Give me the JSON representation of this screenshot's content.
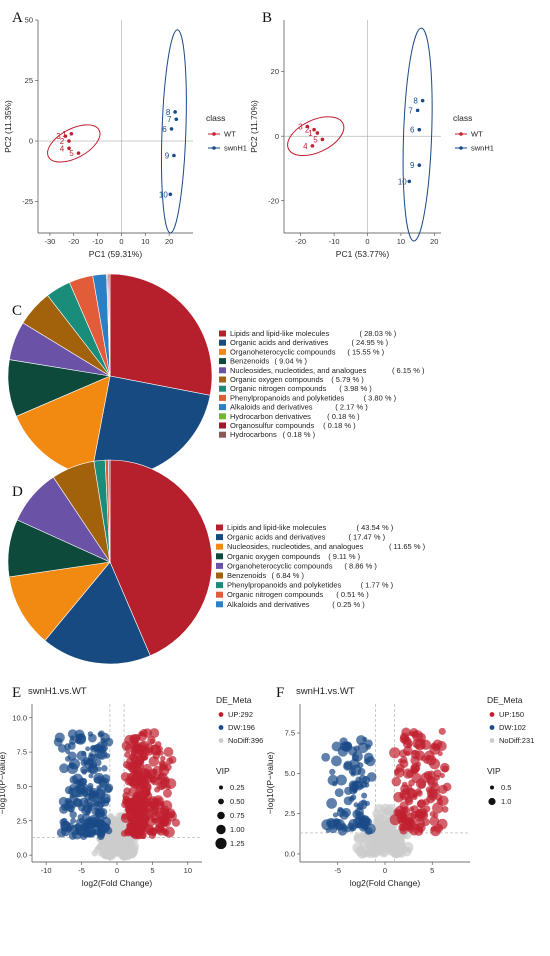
{
  "panels": {
    "a": "A",
    "b": "B",
    "c": "C",
    "d": "D",
    "e": "E",
    "f": "F"
  },
  "colors": {
    "wt": "#c0202f",
    "swnh1": "#1a4a87",
    "nodiff": "#cccccc"
  },
  "chart_data": [
    {
      "panel": "A",
      "type": "scatter",
      "xlabel": "PC1 (59.31%)",
      "ylabel": "PC2 (11.35%)",
      "xlim": [
        -35,
        30
      ],
      "ylim": [
        -38,
        50
      ],
      "xticks": [
        -30,
        -20,
        -10,
        0,
        10,
        20
      ],
      "yticks": [
        -25,
        0,
        25,
        50
      ],
      "xtick_labels": [
        "-30",
        "-20",
        "-10",
        "0",
        "10",
        "20"
      ],
      "ytick_labels": [
        "-25",
        "0",
        "25",
        "50"
      ],
      "legend_title": "class",
      "legend_position": "right",
      "series": [
        {
          "name": "WT",
          "color": "#c0202f",
          "points": [
            {
              "label": "1",
              "x": -21,
              "y": 3
            },
            {
              "label": "2",
              "x": -22,
              "y": 0
            },
            {
              "label": "3",
              "x": -23.5,
              "y": 2
            },
            {
              "label": "4",
              "x": -22,
              "y": -3
            },
            {
              "label": "5",
              "x": -18,
              "y": -5
            }
          ],
          "ellipse": {
            "cx": -20,
            "cy": -1,
            "rx": 12,
            "ry": 6,
            "rot": -28
          }
        },
        {
          "name": "swnH1",
          "color": "#1a4a87",
          "points": [
            {
              "label": "6",
              "x": 21,
              "y": 5
            },
            {
              "label": "7",
              "x": 23,
              "y": 9
            },
            {
              "label": "8",
              "x": 22.5,
              "y": 12
            },
            {
              "label": "9",
              "x": 22,
              "y": -6
            },
            {
              "label": "10",
              "x": 20.5,
              "y": -22
            }
          ],
          "ellipse": {
            "cx": 22,
            "cy": 4,
            "rx": 5,
            "ry": 42,
            "rot": 2
          }
        }
      ]
    },
    {
      "panel": "B",
      "type": "scatter",
      "xlabel": "PC1 (53.77%)",
      "ylabel": "PC2 (11.70%)",
      "xlim": [
        -25,
        22
      ],
      "ylim": [
        -30,
        36
      ],
      "xticks": [
        -20,
        -10,
        0,
        10,
        20
      ],
      "yticks": [
        -20,
        0,
        20
      ],
      "xtick_labels": [
        "-20",
        "-10",
        "0",
        "10",
        "20"
      ],
      "ytick_labels": [
        "-20",
        "0",
        "20"
      ],
      "legend_title": "class",
      "legend_position": "right",
      "series": [
        {
          "name": "WT",
          "color": "#c0202f",
          "points": [
            {
              "label": "1",
              "x": -15,
              "y": 1
            },
            {
              "label": "2",
              "x": -16,
              "y": 2
            },
            {
              "label": "3",
              "x": -18,
              "y": 3
            },
            {
              "label": "4",
              "x": -16.5,
              "y": -3
            },
            {
              "label": "5",
              "x": -13.5,
              "y": -1
            }
          ],
          "ellipse": {
            "cx": -15.5,
            "cy": 0,
            "rx": 9,
            "ry": 5,
            "rot": -25
          }
        },
        {
          "name": "swnH1",
          "color": "#1a4a87",
          "points": [
            {
              "label": "6",
              "x": 15.5,
              "y": 2
            },
            {
              "label": "7",
              "x": 15,
              "y": 8
            },
            {
              "label": "8",
              "x": 16.5,
              "y": 11
            },
            {
              "label": "9",
              "x": 15.5,
              "y": -9
            },
            {
              "label": "10",
              "x": 12.5,
              "y": -14
            }
          ],
          "ellipse": {
            "cx": 15,
            "cy": 0.5,
            "rx": 4.2,
            "ry": 33,
            "rot": 2
          }
        }
      ]
    },
    {
      "panel": "C",
      "type": "pie",
      "slices": [
        {
          "label": "Lipids and lipid-like molecules",
          "pct": "( 28.03 % )",
          "value": 28.03,
          "color": "#b5202c"
        },
        {
          "label": "Organic acids and derivatives",
          "pct": "( 24.95 % )",
          "value": 24.95,
          "color": "#184a82"
        },
        {
          "label": "Organoheterocyclic compounds",
          "pct": "( 15.55 % )",
          "value": 15.55,
          "color": "#f28a12"
        },
        {
          "label": "Benzenoids",
          "pct": "( 9.04 % )",
          "value": 9.04,
          "color": "#0d4a3c"
        },
        {
          "label": "Nucleosides, nucleotides, and analogues",
          "pct": "( 6.15 % )",
          "value": 6.15,
          "color": "#6a53a6"
        },
        {
          "label": "Organic oxygen compounds",
          "pct": "( 5.79 % )",
          "value": 5.79,
          "color": "#a2620c"
        },
        {
          "label": "Organic nitrogen compounds",
          "pct": "( 3.98 % )",
          "value": 3.98,
          "color": "#1a8d7a"
        },
        {
          "label": "Phenylpropanoids and polyketides",
          "pct": "( 3.80 % )",
          "value": 3.8,
          "color": "#e35c39"
        },
        {
          "label": "Alkaloids and derivatives",
          "pct": "( 2.17 % )",
          "value": 2.17,
          "color": "#2b7fc4"
        },
        {
          "label": "Hydrocarbon derivatives",
          "pct": "( 0.18 % )",
          "value": 0.18,
          "color": "#75b52f"
        },
        {
          "label": "Organosulfur compounds",
          "pct": "( 0.18 % )",
          "value": 0.18,
          "color": "#a5152b"
        },
        {
          "label": "Hydrocarbons",
          "pct": "( 0.18 % )",
          "value": 0.18,
          "color": "#8a5a58"
        }
      ]
    },
    {
      "panel": "D",
      "type": "pie",
      "slices": [
        {
          "label": "Lipids and lipid-like molecules",
          "pct": "( 43.54 % )",
          "value": 43.54,
          "color": "#b5202c"
        },
        {
          "label": "Organic acids and derivatives",
          "pct": "( 17.47 % )",
          "value": 17.47,
          "color": "#184a82"
        },
        {
          "label": "Nucleosides, nucleotides, and analogues",
          "pct": "( 11.65 % )",
          "value": 11.65,
          "color": "#f28a12"
        },
        {
          "label": "Organic oxygen compounds",
          "pct": "( 9.11 % )",
          "value": 9.11,
          "color": "#0d4a3c"
        },
        {
          "label": "Organoheterocyclic compounds",
          "pct": "( 8.86 % )",
          "value": 8.86,
          "color": "#6a53a6"
        },
        {
          "label": "Benzenoids",
          "pct": "( 6.84 % )",
          "value": 6.84,
          "color": "#a2620c"
        },
        {
          "label": "Phenylpropanoids and polyketides",
          "pct": "( 1.77 % )",
          "value": 1.77,
          "color": "#1a8d7a"
        },
        {
          "label": "Organic nitrogen compounds",
          "pct": "( 0.51 % )",
          "value": 0.51,
          "color": "#e35c39"
        },
        {
          "label": "Alkaloids and derivatives",
          "pct": "( 0.25 % )",
          "value": 0.25,
          "color": "#2b7fc4"
        }
      ]
    },
    {
      "panel": "E",
      "type": "scatter",
      "title": "swnH1.vs.WT",
      "xlabel": "log2(Fold Change)",
      "ylabel": "−log10(P−value)",
      "xlim": [
        -12,
        12
      ],
      "ylim": [
        -0.5,
        11
      ],
      "xticks": [
        -10,
        -5,
        0,
        5,
        10
      ],
      "yticks": [
        0,
        2.5,
        5,
        7.5,
        10
      ],
      "xtick_labels": [
        "-10",
        "-5",
        "0",
        "5",
        "10"
      ],
      "ytick_labels": [
        "0.0",
        "2.5",
        "5.0",
        "7.5",
        "10.0"
      ],
      "threshold": {
        "x": [
          -1,
          1
        ],
        "y": 1.3
      },
      "legend_title": "DE_Meta",
      "legend": [
        {
          "label": "UP:292",
          "color": "#c0202f"
        },
        {
          "label": "DW:196",
          "color": "#1a4a87"
        },
        {
          "label": "NoDiff:396",
          "color": "#cccccc"
        }
      ],
      "vip_title": "VIP",
      "vip_legend": [
        "0.25",
        "0.50",
        "0.75",
        "1.00",
        "1.25"
      ],
      "groups": {
        "UP": 292,
        "DW": 196,
        "NoDiff": 396
      }
    },
    {
      "panel": "F",
      "type": "scatter",
      "title": "swnH1.vs.WT",
      "xlabel": "log2(Fold Change)",
      "ylabel": "−log10(P−value)",
      "xlim": [
        -9,
        9
      ],
      "ylim": [
        -0.5,
        9.3
      ],
      "xticks": [
        -5,
        0,
        5
      ],
      "yticks": [
        0,
        2.5,
        5,
        7.5
      ],
      "xtick_labels": [
        "-5",
        "0",
        "5"
      ],
      "ytick_labels": [
        "0.0",
        "2.5",
        "5.0",
        "7.5"
      ],
      "threshold": {
        "x": [
          -1,
          1
        ],
        "y": 1.3
      },
      "legend_title": "DE_Meta",
      "legend": [
        {
          "label": "UP:150",
          "color": "#c0202f"
        },
        {
          "label": "DW:102",
          "color": "#1a4a87"
        },
        {
          "label": "NoDiff:231",
          "color": "#cccccc"
        }
      ],
      "vip_title": "VIP",
      "vip_legend": [
        "0.5",
        "1.0"
      ],
      "groups": {
        "UP": 150,
        "DW": 102,
        "NoDiff": 231
      }
    }
  ]
}
